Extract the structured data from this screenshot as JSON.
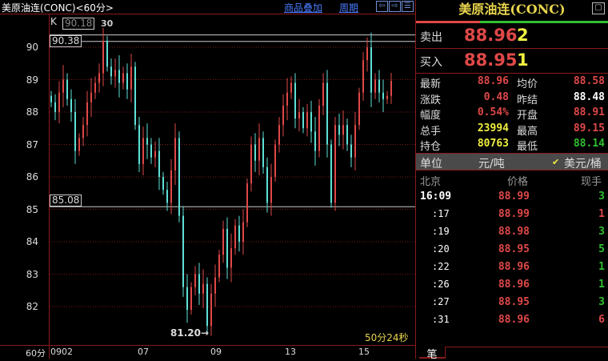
{
  "header": {
    "title": "美原油连(CONC)<60分>",
    "overlay_link": "商品叠加",
    "period_link": "周期",
    "icons": [
      "arrow-left-icon",
      "arrow-right-icon",
      "layout-icon"
    ]
  },
  "chart": {
    "indicator": "K",
    "y_labels": [
      "90",
      "89",
      "88",
      "87",
      "86",
      "85",
      "84",
      "83",
      "82"
    ],
    "x_labels": [
      "0902",
      "07",
      "09",
      "13",
      "15"
    ],
    "period_label": "60分",
    "hidden_box": "90.18",
    "hidden_tag": "30",
    "high_box": "90.38",
    "low_box": "85.08",
    "min_label": "81.20→",
    "countdown": "50分24秒",
    "colors": {
      "up": "#e04848",
      "down": "#5ee0d8",
      "grid": "#7a1a1a"
    }
  },
  "chart_data": {
    "type": "candlestick",
    "ylim": [
      81,
      90.5
    ],
    "y_ticks": [
      82,
      83,
      84,
      85,
      86,
      87,
      88,
      89,
      90
    ],
    "x_tick_labels": [
      "0902",
      "07",
      "09",
      "13",
      "15"
    ],
    "reference_lines": [
      90.38,
      90.18,
      85.08
    ],
    "min_marker": 81.2,
    "close": [
      88.3,
      88.0,
      88.6,
      89.0,
      88.4,
      88.0,
      86.8,
      87.2,
      87.6,
      88.3,
      88.6,
      88.9,
      89.2,
      90.2,
      89.4,
      89.1,
      89.3,
      88.9,
      89.2,
      88.7,
      89.4,
      87.6,
      86.4,
      87.2,
      87.0,
      86.6,
      86.8,
      86.0,
      85.6,
      85.2,
      86.2,
      87.2,
      84.8,
      82.6,
      81.9,
      82.6,
      83.0,
      82.4,
      82.7,
      81.4,
      82.4,
      82.9,
      83.6,
      84.4,
      83.2,
      83.8,
      84.5,
      84.0,
      84.6,
      85.8,
      87.0,
      86.5,
      87.2,
      86.3,
      85.2,
      86.0,
      87.0,
      87.6,
      88.2,
      88.6,
      88.9,
      87.8,
      88.0,
      87.5,
      88.0,
      87.4,
      86.8,
      88.2,
      88.9,
      87.0,
      85.2,
      87.6,
      87.3,
      87.6,
      87.0,
      86.6,
      87.6,
      88.6,
      89.6,
      90.0,
      88.6,
      89.0,
      88.6,
      88.4,
      88.5,
      88.96
    ]
  },
  "panel": {
    "title": "美原油连(CONC)",
    "sell": {
      "label": "卖出",
      "price": "88.96",
      "qty": "2"
    },
    "buy": {
      "label": "买入",
      "price": "88.95",
      "qty": "1"
    },
    "stats": [
      {
        "l1": "最新",
        "v1": "88.96",
        "c1": "red",
        "l2": "均价",
        "v2": "88.58",
        "c2": "red"
      },
      {
        "l1": "涨跌",
        "v1": "0.48",
        "c1": "red",
        "l2": "昨结",
        "v2": "88.48",
        "c2": "wht"
      },
      {
        "l1": "幅度",
        "v1": "0.54%",
        "c1": "red",
        "l2": "开盘",
        "v2": "88.91",
        "c2": "red"
      },
      {
        "l1": "总手",
        "v1": "23994",
        "c1": "yel",
        "l2": "最高",
        "v2": "89.15",
        "c2": "red"
      },
      {
        "l1": "持仓",
        "v1": "80763",
        "c1": "yel",
        "l2": "最低",
        "v2": "88.14",
        "c2": "grn"
      }
    ],
    "unit": {
      "label": "单位",
      "opt1": "元/吨",
      "opt2": "美元/桶",
      "selected": "美元/桶"
    },
    "ticks_header": {
      "time": "北京",
      "price": "价格",
      "qty": "现手"
    },
    "ticks": [
      {
        "t": "16:09",
        "p": "88.99",
        "q": "3",
        "qc": "grn"
      },
      {
        "t": ":17",
        "p": "88.99",
        "q": "1",
        "qc": "red"
      },
      {
        "t": ":19",
        "p": "88.98",
        "q": "3",
        "qc": "grn"
      },
      {
        "t": ":20",
        "p": "88.95",
        "q": "5",
        "qc": "grn"
      },
      {
        "t": ":22",
        "p": "88.96",
        "q": "1",
        "qc": "grn"
      },
      {
        "t": ":26",
        "p": "88.96",
        "q": "1",
        "qc": "grn"
      },
      {
        "t": ":27",
        "p": "88.95",
        "q": "3",
        "qc": "grn"
      },
      {
        "t": ":31",
        "p": "88.96",
        "q": "6",
        "qc": "red"
      }
    ],
    "tab": "笔"
  }
}
